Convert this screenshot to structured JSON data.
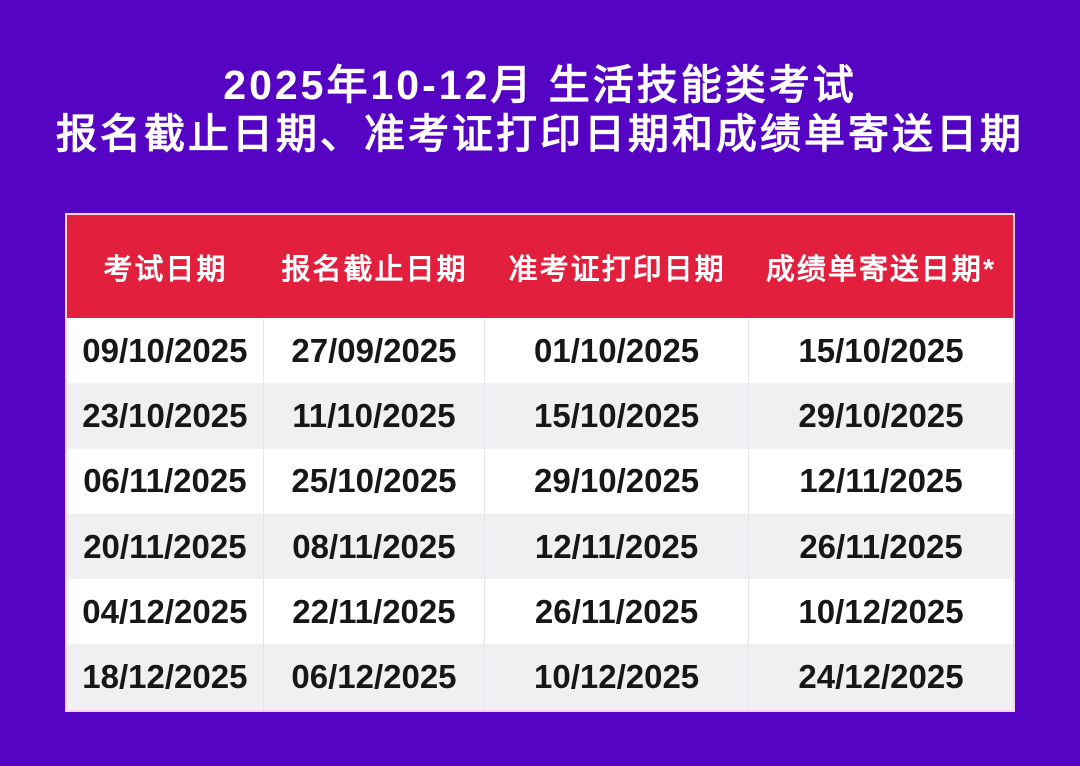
{
  "title": {
    "line1": "2025年10-12月 生活技能类考试",
    "line2": "报名截止日期、准考证打印日期和成绩单寄送日期"
  },
  "table": {
    "columns": [
      "考试日期",
      "报名截止日期",
      "准考证打印日期",
      "成绩单寄送日期*"
    ],
    "rows": [
      [
        "09/10/2025",
        "27/09/2025",
        "01/10/2025",
        "15/10/2025"
      ],
      [
        "23/10/2025",
        "11/10/2025",
        "15/10/2025",
        "29/10/2025"
      ],
      [
        "06/11/2025",
        "25/10/2025",
        "29/10/2025",
        "12/11/2025"
      ],
      [
        "20/11/2025",
        "08/11/2025",
        "12/11/2025",
        "26/11/2025"
      ],
      [
        "04/12/2025",
        "22/11/2025",
        "26/11/2025",
        "10/12/2025"
      ],
      [
        "18/12/2025",
        "06/12/2025",
        "10/12/2025",
        "24/12/2025"
      ]
    ]
  },
  "colors": {
    "bg": "#5604C3",
    "header-bg": "#E2203E",
    "header-text": "#FFFFFF",
    "row": "#FFFFFF",
    "row-alt": "#F0F0F3",
    "table-border": "#F3D4E3",
    "cell-divider": "#E4E4E9",
    "text": "#171717"
  }
}
